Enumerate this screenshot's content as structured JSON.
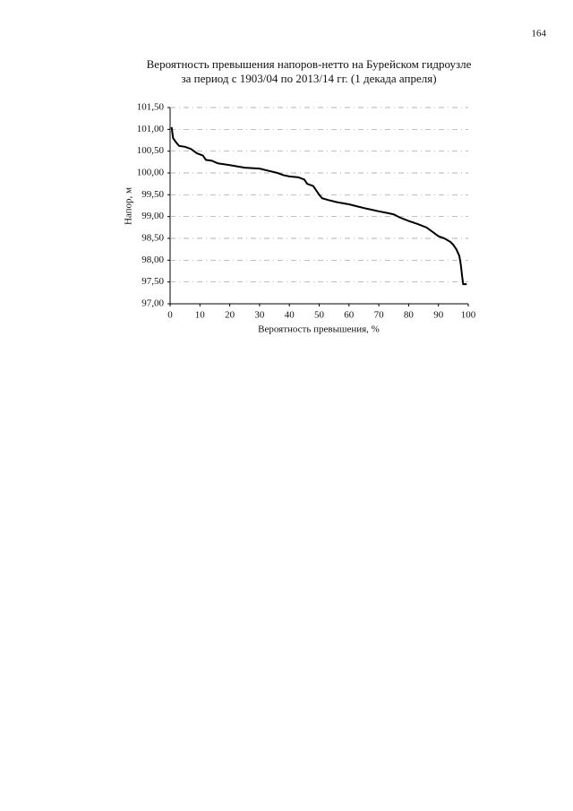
{
  "page_number": "164",
  "chart_data": {
    "type": "line",
    "title": [
      "Вероятность превышения напоров-нетто на Бурейском гидроузле",
      "за период с 1903/04 по 2013/14 гг. (1 декада апреля)"
    ],
    "x_label": "Вероятность превышения, %",
    "y_label": "Напор, м",
    "xlim": [
      0,
      100
    ],
    "xticks": [
      0,
      10,
      20,
      30,
      40,
      50,
      60,
      70,
      80,
      90,
      100
    ],
    "ylim": [
      97,
      101.5
    ],
    "yticks": [
      {
        "value": 97,
        "label": "97,00"
      },
      {
        "value": 97.5,
        "label": "97,50"
      },
      {
        "value": 98,
        "label": "98,00"
      },
      {
        "value": 98.5,
        "label": "98,50"
      },
      {
        "value": 99,
        "label": "99,00"
      },
      {
        "value": 99.5,
        "label": "99,50"
      },
      {
        "value": 100,
        "label": "100,00"
      },
      {
        "value": 100.5,
        "label": "100,50"
      },
      {
        "value": 101,
        "label": "101,00"
      },
      {
        "value": 101.5,
        "label": "101,50"
      }
    ],
    "grid": true,
    "color": "#000000",
    "x": [
      0.5,
      1,
      2,
      3,
      5,
      7,
      8,
      9,
      11,
      12,
      14,
      16,
      20,
      25,
      30,
      33,
      36,
      38,
      40,
      43,
      45,
      46,
      48,
      49,
      50,
      51,
      53,
      56,
      60,
      63,
      66,
      70,
      73,
      75,
      77,
      80,
      83,
      86,
      88,
      90,
      92,
      94,
      95,
      96,
      97,
      97.5,
      98,
      98.3,
      99.5
    ],
    "values": [
      101.05,
      100.8,
      100.7,
      100.62,
      100.6,
      100.55,
      100.5,
      100.45,
      100.4,
      100.3,
      100.28,
      100.22,
      100.18,
      100.12,
      100.1,
      100.05,
      100.0,
      99.95,
      99.92,
      99.9,
      99.85,
      99.75,
      99.7,
      99.6,
      99.5,
      99.42,
      99.38,
      99.33,
      99.28,
      99.23,
      99.18,
      99.12,
      99.08,
      99.05,
      98.98,
      98.9,
      98.83,
      98.75,
      98.65,
      98.55,
      98.5,
      98.42,
      98.35,
      98.25,
      98.1,
      97.9,
      97.6,
      97.45,
      97.45
    ]
  }
}
